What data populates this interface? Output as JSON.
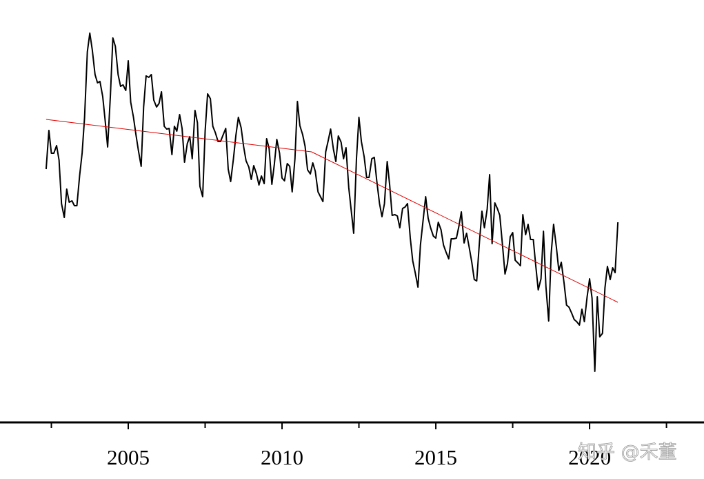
{
  "chart_data": {
    "type": "line",
    "xlim": [
      2000.83,
      2023.72
    ],
    "ylim": [
      0,
      612
    ],
    "xticks": [
      2005,
      2010,
      2015,
      2020
    ],
    "xminor_ticks": [
      2002.5,
      2007.5,
      2012.5,
      2017.5,
      2022.5
    ],
    "watermark": "知乎 @禾董",
    "series": [
      {
        "color": "#000000",
        "x": [
          2002.33,
          2002.42,
          2002.5,
          2002.58,
          2002.67,
          2002.75,
          2002.83,
          2002.92,
          2003,
          2003.08,
          2003.17,
          2003.25,
          2003.33,
          2003.42,
          2003.5,
          2003.58,
          2003.67,
          2003.75,
          2003.83,
          2003.92,
          2004,
          2004.08,
          2004.17,
          2004.25,
          2004.33,
          2004.42,
          2004.5,
          2004.58,
          2004.67,
          2004.75,
          2004.83,
          2004.92,
          2005,
          2005.08,
          2005.17,
          2005.25,
          2005.33,
          2005.42,
          2005.5,
          2005.58,
          2005.67,
          2005.75,
          2005.83,
          2005.92,
          2006,
          2006.08,
          2006.17,
          2006.25,
          2006.33,
          2006.42,
          2006.5,
          2006.58,
          2006.67,
          2006.75,
          2006.83,
          2006.92,
          2007,
          2007.08,
          2007.17,
          2007.25,
          2007.33,
          2007.42,
          2007.5,
          2007.58,
          2007.67,
          2007.75,
          2007.83,
          2007.92,
          2008,
          2008.08,
          2008.17,
          2008.25,
          2008.33,
          2008.42,
          2008.5,
          2008.58,
          2008.67,
          2008.75,
          2008.83,
          2008.92,
          2009,
          2009.08,
          2009.17,
          2009.25,
          2009.33,
          2009.42,
          2009.5,
          2009.58,
          2009.67,
          2009.75,
          2009.83,
          2009.92,
          2010,
          2010.08,
          2010.17,
          2010.25,
          2010.33,
          2010.42,
          2010.5,
          2010.58,
          2010.67,
          2010.75,
          2010.83,
          2010.92,
          2011,
          2011.08,
          2011.17,
          2011.25,
          2011.33,
          2011.42,
          2011.5,
          2011.58,
          2011.67,
          2011.75,
          2011.83,
          2011.92,
          2012,
          2012.08,
          2012.17,
          2012.25,
          2012.33,
          2012.42,
          2012.5,
          2012.58,
          2012.67,
          2012.75,
          2012.83,
          2012.92,
          2013,
          2013.08,
          2013.17,
          2013.25,
          2013.33,
          2013.42,
          2013.5,
          2013.58,
          2013.67,
          2013.75,
          2013.83,
          2013.92,
          2014,
          2014.08,
          2014.17,
          2014.25,
          2014.33,
          2014.42,
          2014.5,
          2014.58,
          2014.67,
          2014.75,
          2014.83,
          2014.92,
          2015,
          2015.08,
          2015.17,
          2015.25,
          2015.33,
          2015.42,
          2015.5,
          2015.58,
          2015.67,
          2015.75,
          2015.83,
          2015.92,
          2016,
          2016.08,
          2016.17,
          2016.25,
          2016.33,
          2016.42,
          2016.5,
          2016.58,
          2016.67,
          2016.75,
          2016.83,
          2016.92,
          2017,
          2017.08,
          2017.17,
          2017.25,
          2017.33,
          2017.42,
          2017.5,
          2017.58,
          2017.67,
          2017.75,
          2017.83,
          2017.92,
          2018,
          2018.08,
          2018.17,
          2018.25,
          2018.33,
          2018.42,
          2018.5,
          2018.58,
          2018.67,
          2018.75,
          2018.83,
          2018.92,
          2019,
          2019.08,
          2019.17,
          2019.25,
          2019.33,
          2019.42,
          2019.5,
          2019.58,
          2019.67,
          2019.75,
          2019.83,
          2019.92,
          2020,
          2020.08,
          2020.17,
          2020.25,
          2020.33,
          2020.42,
          2020.5,
          2020.58,
          2020.67,
          2020.75,
          2020.83,
          2020.92
        ],
        "values": [
          367,
          423,
          390,
          390,
          401,
          380,
          317,
          297,
          338,
          319,
          321,
          314,
          314,
          358,
          390,
          442,
          537,
          564,
          540,
          504,
          492,
          494,
          472,
          437,
          399,
          474,
          557,
          545,
          504,
          487,
          489,
          481,
          524,
          464,
          442,
          417,
          394,
          371,
          457,
          502,
          500,
          504,
          467,
          457,
          462,
          479,
          429,
          425,
          426,
          388,
          429,
          422,
          446,
          426,
          377,
          404,
          414,
          382,
          452,
          434,
          342,
          327,
          422,
          476,
          469,
          429,
          420,
          407,
          407,
          416,
          426,
          367,
          349,
          382,
          416,
          442,
          427,
          400,
          379,
          370,
          352,
          372,
          360,
          344,
          357,
          346,
          411,
          397,
          345,
          374,
          410,
          390,
          354,
          350,
          375,
          371,
          334,
          382,
          465,
          430,
          417,
          400,
          366,
          360,
          376,
          364,
          334,
          327,
          320,
          392,
          408,
          425,
          396,
          378,
          415,
          406,
          382,
          398,
          340,
          307,
          274,
          382,
          442,
          407,
          385,
          355,
          355,
          382,
          384,
          350,
          317,
          298,
          317,
          378,
          344,
          300,
          301,
          299,
          282,
          310,
          312,
          317,
          267,
          234,
          217,
          196,
          257,
          290,
          327,
          296,
          282,
          270,
          267,
          290,
          279,
          257,
          247,
          237,
          266,
          266,
          267,
          284,
          305,
          260,
          274,
          255,
          232,
          207,
          205,
          262,
          306,
          282,
          309,
          359,
          259,
          318,
          310,
          300,
          256,
          215,
          230,
          269,
          275,
          235,
          231,
          227,
          301,
          272,
          287,
          265,
          265,
          227,
          192,
          208,
          277,
          197,
          147,
          244,
          287,
          254,
          220,
          232,
          202,
          170,
          167,
          158,
          149,
          146,
          141,
          164,
          146,
          182,
          208,
          180,
          74,
          182,
          124,
          129,
          195,
          226,
          207,
          224,
          217,
          290
        ]
      },
      {
        "color": "#e00000",
        "x": [
          2002.33,
          2010.96,
          2020.92
        ],
        "values": [
          439,
          392,
          174
        ]
      }
    ]
  }
}
